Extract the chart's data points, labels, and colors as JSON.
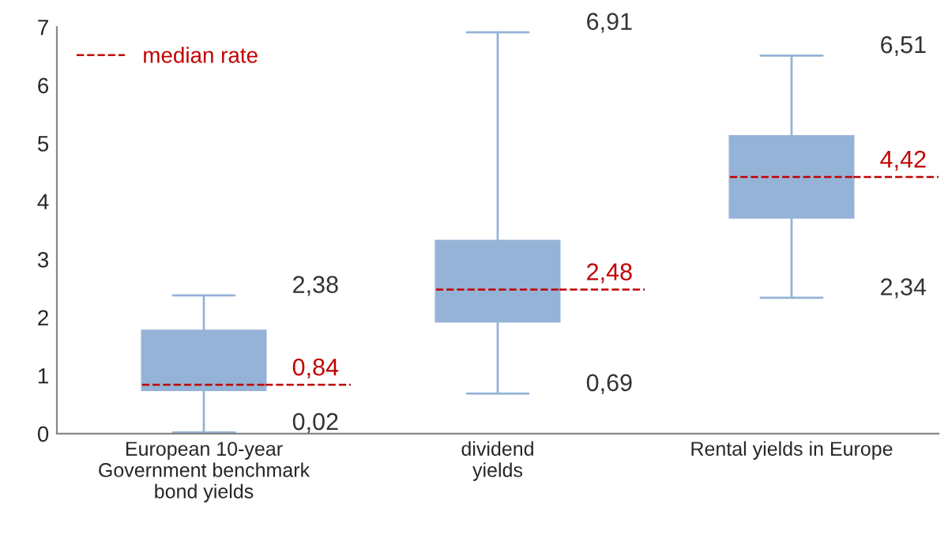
{
  "chart_data": {
    "type": "box",
    "categories": [
      "European 10-year\nGovernment benchmark\nbond yields",
      "dividend\nyields",
      "Rental yields in Europe"
    ],
    "color": "#c00000",
    "series": [
      {
        "name": "median rate",
        "color": "#95b3d7",
        "boxes": [
          {
            "low": 0.02,
            "q1": 0.75,
            "median": 0.84,
            "q3": 1.77,
            "high": 2.38
          },
          {
            "low": 0.69,
            "q1": 1.93,
            "median": 2.48,
            "q3": 3.32,
            "high": 6.91
          },
          {
            "low": 2.34,
            "q1": 3.72,
            "median": 4.42,
            "q3": 5.12,
            "high": 6.51
          }
        ]
      }
    ],
    "annotations": [
      "2,38",
      "0,84",
      "0,02",
      "6,91",
      "2,48",
      "0,69",
      "6,51",
      "4,42",
      "2,34"
    ],
    "ylim": [
      0,
      7
    ],
    "yticks": [
      0,
      1,
      2,
      3,
      4,
      5,
      6,
      7
    ],
    "grid": false,
    "legend": "top left",
    "line_style": "dashed"
  }
}
